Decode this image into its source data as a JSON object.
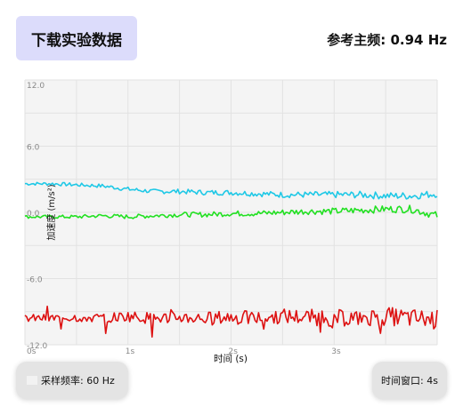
{
  "header": {
    "download_label": "下载实验数据",
    "reference_freq": "参考主频: 0.94 Hz"
  },
  "controls": {
    "sample_rate": "采样频率: 60 Hz",
    "time_window": "时间窗口: 4s"
  },
  "chart_data": {
    "type": "line",
    "xlabel": "时间 (s)",
    "ylabel": "加速度 (m/s²)",
    "ylim": [
      -12,
      12
    ],
    "xlim": [
      0,
      4
    ],
    "x_ticks": [
      "0s",
      "1s",
      "2s",
      "3s"
    ],
    "y_ticks": [
      "12.0",
      "6.0",
      "0.0",
      "-6.0",
      "-12.0"
    ],
    "grid": true,
    "series": [
      {
        "color": "#1ec8e6",
        "x": [
          0,
          0.25,
          0.5,
          0.75,
          1.0,
          1.25,
          1.5,
          1.75,
          2.0,
          2.25,
          2.5,
          2.75,
          3.0,
          3.25,
          3.5,
          3.75,
          4.0
        ],
        "y": [
          2.6,
          2.6,
          2.5,
          2.4,
          2.1,
          1.9,
          1.9,
          1.8,
          1.8,
          1.7,
          1.6,
          1.6,
          1.6,
          1.6,
          1.5,
          1.5,
          1.7
        ]
      },
      {
        "color": "#22e022",
        "x": [
          0,
          0.25,
          0.5,
          0.75,
          1.0,
          1.25,
          1.5,
          1.75,
          2.0,
          2.25,
          2.5,
          2.75,
          3.0,
          3.25,
          3.5,
          3.75,
          4.0
        ],
        "y": [
          -0.4,
          -0.4,
          -0.4,
          -0.3,
          -0.4,
          -0.3,
          -0.2,
          -0.2,
          -0.1,
          -0.1,
          0.0,
          0.1,
          0.1,
          0.2,
          0.3,
          0.3,
          -0.3
        ]
      },
      {
        "color": "#dd1111",
        "x": [
          0,
          0.25,
          0.5,
          0.75,
          1.0,
          1.25,
          1.5,
          1.75,
          2.0,
          2.25,
          2.5,
          2.75,
          3.0,
          3.25,
          3.5,
          3.75,
          4.0
        ],
        "y": [
          -9.6,
          -9.6,
          -9.5,
          -9.6,
          -9.4,
          -9.6,
          -9.5,
          -9.6,
          -9.5,
          -9.6,
          -9.4,
          -9.5,
          -9.6,
          -9.5,
          -9.4,
          -9.6,
          -9.7
        ]
      }
    ]
  }
}
